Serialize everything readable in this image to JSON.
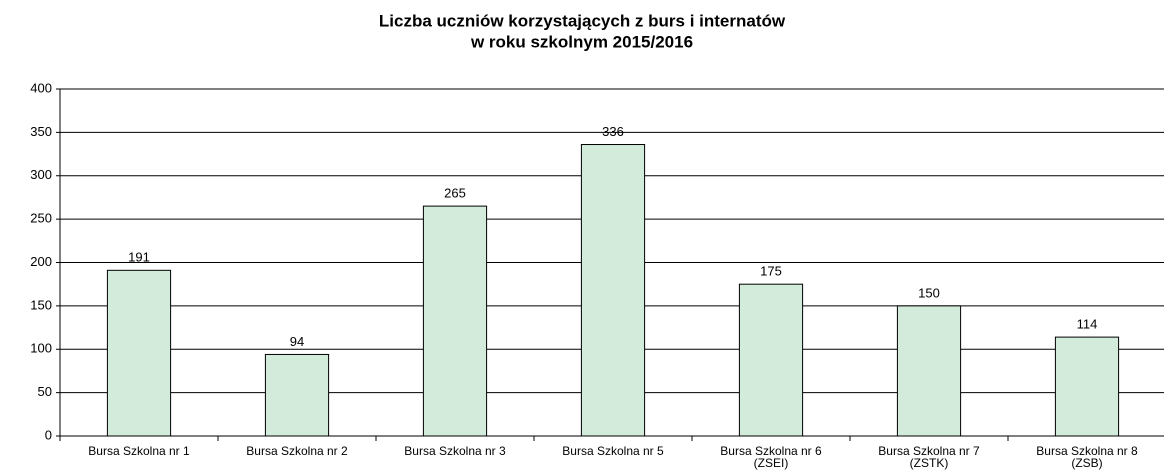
{
  "chart_data": {
    "type": "bar",
    "title": [
      "Liczba uczniów korzystających z burs i internatów",
      "w roku szkolnym 2015/2016"
    ],
    "categories": [
      "Bursa Szkolna nr 1",
      "Bursa Szkolna nr 2",
      "Bursa Szkolna nr 3",
      "Bursa Szkolna nr 5",
      "Bursa Szkolna nr 6 (ZSEI)",
      "Bursa Szkolna nr 7 (ZSTK)",
      "Bursa Szkolna nr 8 (ZSB)"
    ],
    "values": [
      191,
      94,
      265,
      336,
      175,
      150,
      114
    ],
    "color": "#d3ebdb",
    "ylim": [
      0,
      400
    ],
    "yticks": [
      0,
      50,
      100,
      150,
      200,
      250,
      300,
      350,
      400
    ],
    "grid": true
  }
}
